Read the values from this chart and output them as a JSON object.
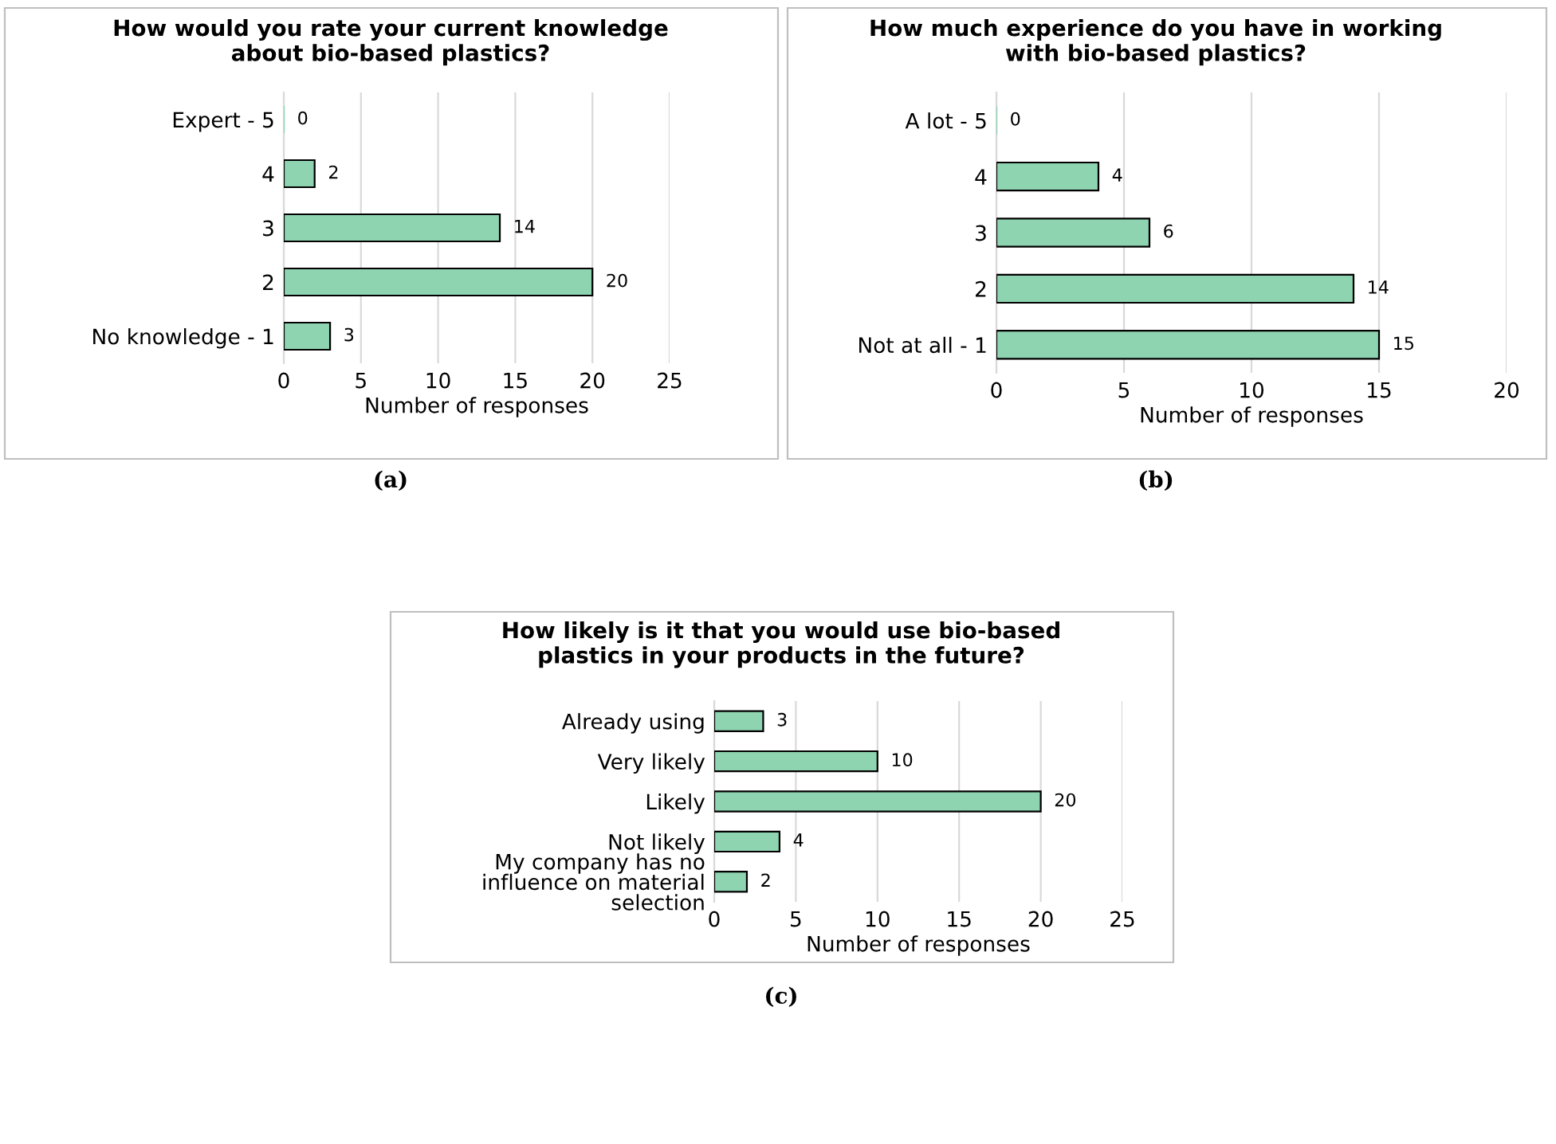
{
  "chart_data": [
    {
      "type": "bar",
      "orientation": "horizontal",
      "title": "How would you rate your current knowledge about bio-based plastics?",
      "xlabel": "Number of responses",
      "categories": [
        "Expert - 5",
        "4",
        "3",
        "2",
        "No knowledge - 1"
      ],
      "values": [
        0,
        2,
        14,
        20,
        3
      ],
      "color": "#8fd4b1",
      "xlim": [
        0,
        25
      ],
      "xticks": [
        0,
        5,
        10,
        15,
        20,
        25
      ],
      "grid": "x",
      "data_labels": true,
      "annotations": [
        "(a)"
      ]
    },
    {
      "type": "bar",
      "orientation": "horizontal",
      "title": "How much experience do you have in working with bio-based plastics?",
      "xlabel": "Number of responses",
      "categories": [
        "A lot - 5",
        "4",
        "3",
        "2",
        "Not at all - 1"
      ],
      "values": [
        0,
        4,
        6,
        14,
        15
      ],
      "color": "#8fd4b1",
      "xlim": [
        0,
        20
      ],
      "xticks": [
        0,
        5,
        10,
        15,
        20
      ],
      "grid": "x",
      "data_labels": true,
      "annotations": [
        "(b)"
      ]
    },
    {
      "type": "bar",
      "orientation": "horizontal",
      "title": "How likely is it that you would use bio-based plastics in your products in the future?",
      "xlabel": "Number of responses",
      "categories": [
        "Already using",
        "Very likely",
        "Likely",
        "Not likely",
        "My company has no influence on material selection"
      ],
      "values": [
        3,
        10,
        20,
        4,
        2
      ],
      "color": "#8fd4b1",
      "xlim": [
        0,
        25
      ],
      "xticks": [
        0,
        5,
        10,
        15,
        20,
        25
      ],
      "grid": "x",
      "data_labels": true,
      "annotations": [
        "(c)"
      ]
    }
  ]
}
